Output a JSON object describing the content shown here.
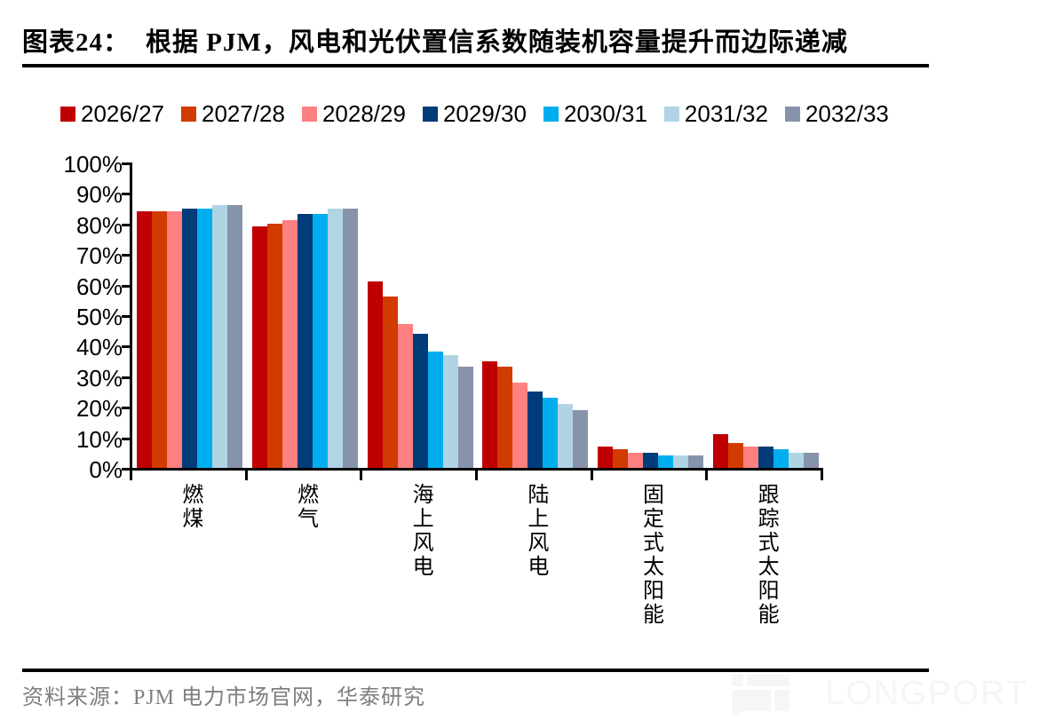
{
  "figure_label": "图表24：",
  "title": "根据 PJM，风电和光伏置信系数随装机容量提升而边际递减",
  "source": "资料来源：PJM 电力市场官网，华泰研究",
  "watermark": "LONGPORT",
  "chart_data": {
    "type": "bar",
    "categories": [
      "燃煤",
      "燃气",
      "海上风电",
      "陆上风电",
      "固定式太阳能",
      "跟踪式太阳能"
    ],
    "series": [
      {
        "name": "2026/27",
        "color": "#C00000",
        "values": [
          84,
          79,
          61,
          35,
          7,
          11
        ]
      },
      {
        "name": "2027/28",
        "color": "#D13B00",
        "values": [
          84,
          80,
          56,
          33,
          6,
          8
        ]
      },
      {
        "name": "2028/29",
        "color": "#FF8080",
        "values": [
          84,
          81,
          47,
          28,
          5,
          7
        ]
      },
      {
        "name": "2029/30",
        "color": "#003B7A",
        "values": [
          85,
          83,
          44,
          25,
          5,
          7
        ]
      },
      {
        "name": "2030/31",
        "color": "#00AEEF",
        "values": [
          85,
          83,
          38,
          23,
          4,
          6
        ]
      },
      {
        "name": "2031/32",
        "color": "#B0D4E4",
        "values": [
          86,
          85,
          37,
          21,
          4,
          5
        ]
      },
      {
        "name": "2032/33",
        "color": "#8793AB",
        "values": [
          86,
          85,
          33,
          19,
          4,
          5
        ]
      }
    ],
    "title": "根据 PJM，风电和光伏置信系数随装机容量提升而边际递减",
    "xlabel": "",
    "ylabel": "",
    "ylim": [
      0,
      100
    ],
    "ytick_step": 10,
    "ytick_suffix": "%",
    "grid": false,
    "legend_position": "top"
  }
}
